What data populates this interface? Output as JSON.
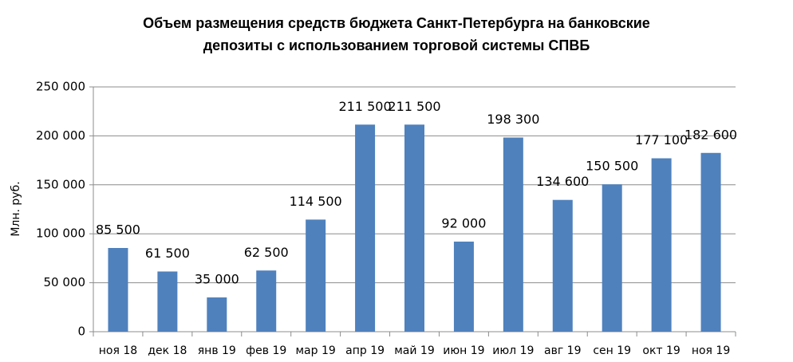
{
  "chart_data": {
    "type": "bar",
    "title": [
      "Объем размещения средств бюджета Санкт-Петербурга на банковские",
      "депозиты с использованием торговой системы СПВБ"
    ],
    "y_label": "Млн. руб.",
    "categories": [
      "ноя 18",
      "дек 18",
      "янв 19",
      "фев 19",
      "мар 19",
      "апр 19",
      "май 19",
      "июн 19",
      "июл 19",
      "авг 19",
      "сен 19",
      "окт 19",
      "ноя 19"
    ],
    "values": [
      85500,
      61500,
      35000,
      62500,
      114500,
      211500,
      211500,
      92000,
      198300,
      134600,
      150500,
      177100,
      182600
    ],
    "value_labels": [
      "85 500",
      "61 500",
      "35 000",
      "62 500",
      "114 500",
      "211 500",
      "211 500",
      "92 000",
      "198 300",
      "134 600",
      "150 500",
      "177 100",
      "182 600"
    ],
    "color": "#4f81bd",
    "ylim": [
      0,
      250000
    ],
    "yticks": [
      0,
      {
        "value": 50000,
        "label": "50 000"
      },
      {
        "value": 100000,
        "label": "100 000"
      },
      {
        "value": 150000,
        "label": "150 000"
      },
      {
        "value": 200000,
        "label": "200 000"
      },
      {
        "value": 250000,
        "label": "250 000"
      }
    ],
    "grid": true
  }
}
